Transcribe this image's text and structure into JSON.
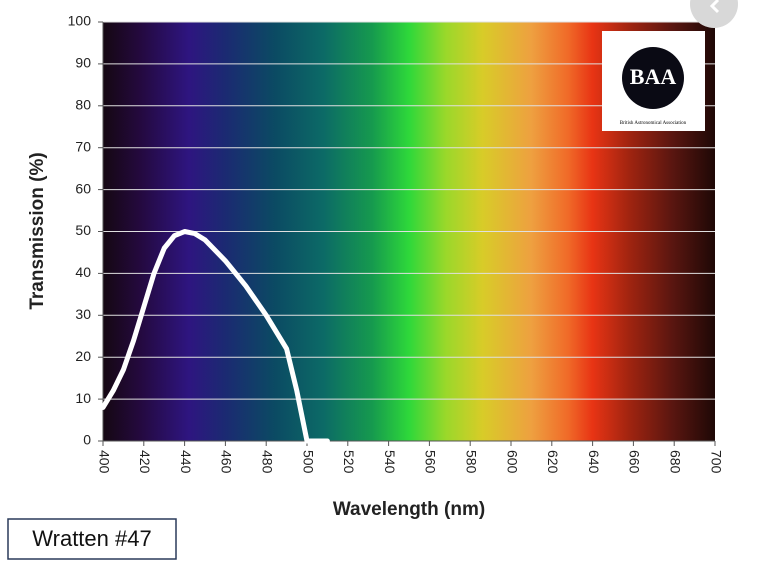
{
  "chart_data": {
    "type": "line",
    "xlabel": "Wavelength (nm)",
    "ylabel": "Transmission (%)",
    "x": [
      400,
      405,
      410,
      415,
      420,
      425,
      430,
      435,
      440,
      445,
      450,
      460,
      470,
      480,
      490,
      495,
      500,
      505,
      510
    ],
    "series": [
      {
        "name": "Wratten #47",
        "color": "#ffffff",
        "values": [
          8,
          12,
          17,
          24,
          32,
          40,
          46,
          49,
          50,
          49.5,
          48,
          43,
          37,
          30,
          22,
          12,
          0,
          0,
          0
        ]
      }
    ],
    "xlim": [
      400,
      700
    ],
    "xticks": [
      400,
      420,
      440,
      460,
      480,
      500,
      520,
      540,
      560,
      580,
      600,
      620,
      640,
      660,
      680,
      700
    ],
    "ylim": [
      0,
      100
    ],
    "yticks": [
      0,
      10,
      20,
      30,
      40,
      50,
      60,
      70,
      80,
      90,
      100
    ],
    "grid": true,
    "logo": {
      "text": "BAA",
      "caption": "British Astronomical Association"
    },
    "annotation": "Wratten #47"
  }
}
